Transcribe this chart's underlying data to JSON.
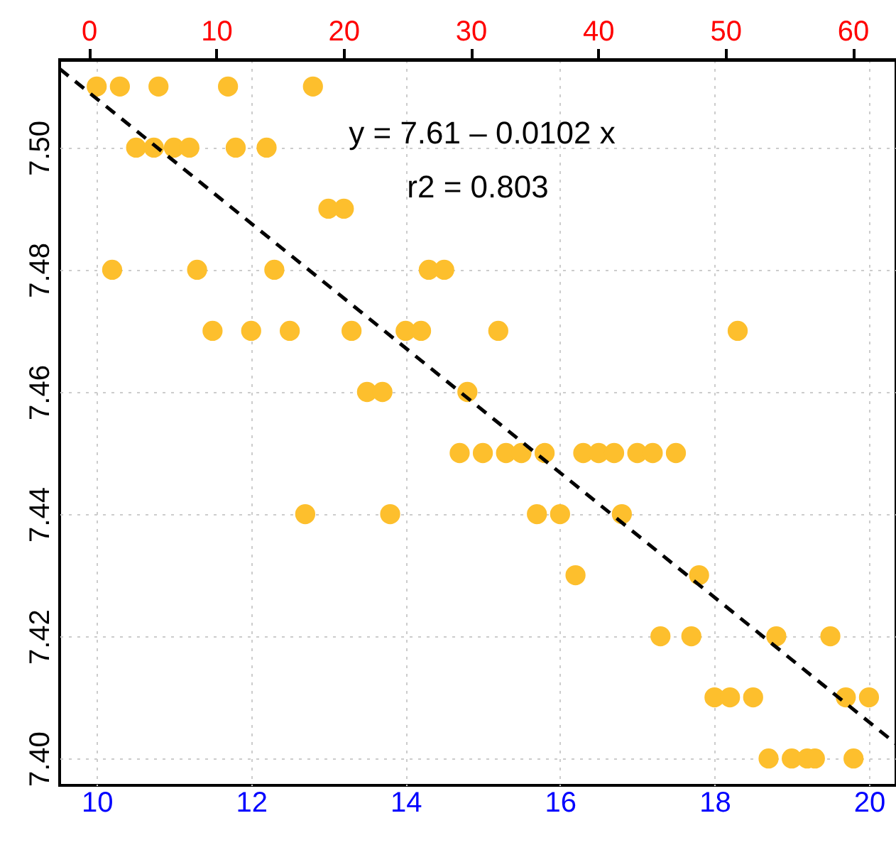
{
  "chart_data": {
    "type": "scatter",
    "grid": true,
    "xlim": [
      9.52,
      20.35
    ],
    "xticks": [
      10,
      12,
      14,
      16,
      18,
      20
    ],
    "ylim": [
      7.3956,
      7.5144
    ],
    "yticks": [
      {
        "value": 7.4,
        "label": "7.40"
      },
      {
        "value": 7.42,
        "label": "7.42"
      },
      {
        "value": 7.44,
        "label": "7.44"
      },
      {
        "value": 7.46,
        "label": "7.46"
      },
      {
        "value": 7.48,
        "label": "7.48"
      },
      {
        "value": 7.5,
        "label": "7.50"
      }
    ],
    "x2lim": [
      -2.29,
      63.4
    ],
    "x2ticks": [
      0,
      10,
      20,
      30,
      40,
      50,
      60
    ],
    "annotations": [
      "y = 7.61 – 0.0102 x",
      "r2 = 0.803"
    ],
    "series": [
      {
        "marker": "circle",
        "color": "#fdbf2d",
        "x": [
          10.0,
          10.3,
          10.8,
          11.7,
          12.8,
          10.51,
          10.74,
          11.0,
          11.2,
          11.8,
          12.2,
          13.0,
          13.2,
          10.2,
          11.3,
          12.3,
          14.3,
          14.5,
          11.5,
          12.0,
          12.5,
          13.3,
          14.0,
          14.2,
          15.2,
          18.3,
          13.5,
          13.7,
          14.8,
          14.7,
          15.0,
          15.3,
          15.5,
          15.8,
          16.3,
          16.5,
          16.7,
          17.0,
          17.2,
          17.5,
          12.7,
          13.8,
          15.7,
          16.0,
          16.8,
          16.2,
          17.8,
          17.3,
          17.7,
          18.8,
          19.5,
          18.0,
          18.2,
          18.5,
          19.7,
          20.0,
          18.7,
          19.0,
          19.2,
          19.3,
          19.8
        ],
        "values": [
          7.51,
          7.51,
          7.51,
          7.51,
          7.51,
          7.5,
          7.5,
          7.5,
          7.5,
          7.5,
          7.5,
          7.49,
          7.49,
          7.48,
          7.48,
          7.48,
          7.48,
          7.48,
          7.47,
          7.47,
          7.47,
          7.47,
          7.47,
          7.47,
          7.47,
          7.47,
          7.46,
          7.46,
          7.46,
          7.45,
          7.45,
          7.45,
          7.45,
          7.45,
          7.45,
          7.45,
          7.45,
          7.45,
          7.45,
          7.45,
          7.44,
          7.44,
          7.44,
          7.44,
          7.44,
          7.43,
          7.43,
          7.42,
          7.42,
          7.42,
          7.42,
          7.41,
          7.41,
          7.41,
          7.41,
          7.41,
          7.4,
          7.4,
          7.4,
          7.4,
          7.4
        ]
      },
      {
        "type": "line",
        "color": "#000000",
        "line_style": "dashed",
        "x": [
          9.52,
          20.35
        ],
        "values": [
          7.5129,
          7.4024
        ]
      }
    ]
  }
}
